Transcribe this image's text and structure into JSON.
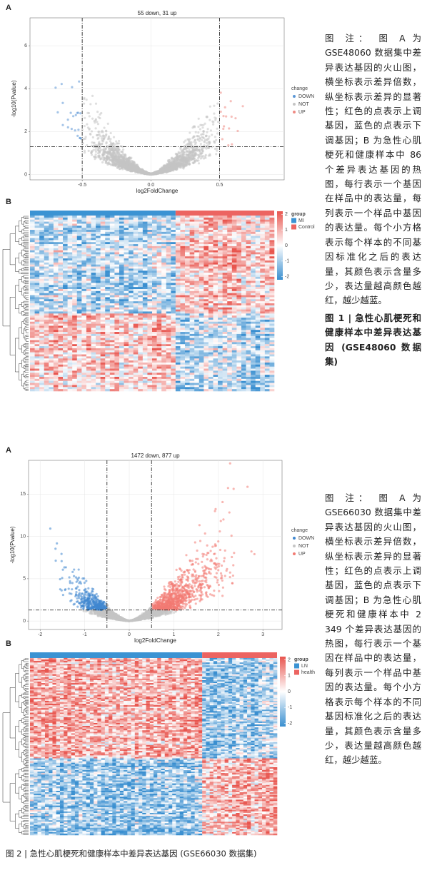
{
  "figure1": {
    "panel_a": {
      "label": "A",
      "title": "55 down, 31 up",
      "x_label": "log2FoldChange",
      "y_label": "-log10(Pvalue)",
      "xlim": [
        -0.88,
        0.97
      ],
      "ylim": [
        -0.25,
        7.3
      ],
      "xticks": [
        -0.5,
        {
          "value": 0,
          "label": "0.0"
        },
        0.5
      ],
      "yticks": [
        0,
        2,
        4,
        6
      ],
      "threshold_x": [
        -0.5,
        0.5
      ],
      "threshold_y": 1.3,
      "grid": true,
      "legend_title": "change",
      "legend": [
        {
          "name": "DOWN",
          "color": "#5b96d6"
        },
        {
          "name": "NOT",
          "color": "#c4c4c4"
        },
        {
          "name": "UP",
          "color": "#ef8a83"
        }
      ]
    },
    "panel_b": {
      "label": "B",
      "legend_title": "group",
      "groups": [
        {
          "name": "MI",
          "color": "#3b93d3",
          "n": 31
        },
        {
          "name": "Control",
          "color": "#ec6461",
          "n": 21
        }
      ],
      "colorbar_lim": [
        -2.2,
        2.2
      ],
      "colorbar_ticks": [
        2,
        1,
        0,
        -1,
        -2
      ]
    },
    "caption_note": "图 注： 图 A 为 GSE48060 数据集中差异表达基因的火山图，横坐标表示差异倍数，纵坐标表示差异的显著性；红色的点表示上调基因，蓝色的点表示下调基因；B 为急性心肌梗死和健康样本中 86 个差异表达基因的热图，每行表示一个基因在样品中的表达量，每列表示一个样品中基因的表达量。每个小方格表示每个样本的不同基因标准化之后的表达量，其颜色表示含量多少，表达量越高颜色越红，越少越蓝。",
    "caption_title": "图 1 | 急性心肌梗死和健康样本中差异表达基因 (GSE48060 数据集)"
  },
  "figure2": {
    "panel_a": {
      "label": "A",
      "title": "1472 down, 877 up",
      "x_label": "log2FoldChange",
      "y_label": "-log10(Pvalue)",
      "xlim": [
        -2.26,
        3.43
      ],
      "ylim": [
        -1.0,
        19.0
      ],
      "xticks": [
        -2,
        -1,
        0,
        1,
        2,
        3
      ],
      "yticks": [
        0,
        5,
        10,
        15
      ],
      "threshold_x": [
        -0.5,
        0.5
      ],
      "threshold_y": 1.3,
      "grid": true,
      "legend_title": "change",
      "legend": [
        {
          "name": "DOWN",
          "color": "#3f86cf"
        },
        {
          "name": "NOT",
          "color": "#c4c4c4"
        },
        {
          "name": "UP",
          "color": "#f27a72"
        }
      ]
    },
    "panel_b": {
      "label": "B",
      "legend_title": "group",
      "groups": [
        {
          "name": "LN",
          "color": "#3b93d3",
          "n": 46
        },
        {
          "name": "health",
          "color": "#ec6461",
          "n": 20
        }
      ],
      "colorbar_lim": [
        -2.2,
        2.2
      ],
      "colorbar_ticks": [
        2,
        1,
        0,
        -1,
        -2
      ]
    },
    "caption_note": "图 注： 图 A 为 GSE66030 数据集中差异表达基因的火山图，横坐标表示差异倍数，纵坐标表示差异的显著性；红色的点表示上调基因，蓝色的点表示下调基因；B 为急性心肌梗死和健康样本中 2 349 个差异表达基因的热图，每行表示一个基因在样品中的表达量，每列表示一个样品中基因的表达量。每个小方格表示每个样本的不同基因标准化之后的表达量，其颜色表示含量多少，表达量越高颜色越红，越少越蓝。",
    "caption_title": "图 2 | 急性心肌梗死和健康样本中差异表达基因 (GSE66030 数据集)"
  }
}
